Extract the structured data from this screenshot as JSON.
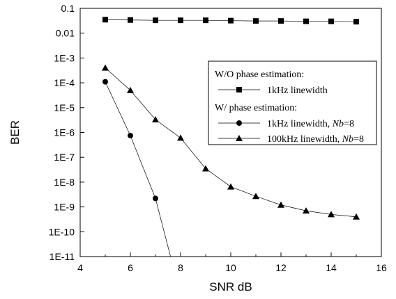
{
  "chart_data": {
    "type": "line",
    "xlabel": "SNR dB",
    "ylabel": "BER",
    "xlim": [
      4,
      16
    ],
    "ylim": [
      1e-11,
      0.1
    ],
    "yscale": "log",
    "grid": false,
    "xticks": [
      4,
      6,
      8,
      10,
      12,
      14,
      16
    ],
    "xtick_labels": [
      "4",
      "6",
      "8",
      "10",
      "12",
      "14",
      "16"
    ],
    "yticks": [
      1e-11,
      1e-10,
      1e-09,
      1e-08,
      1e-07,
      1e-06,
      1e-05,
      0.0001,
      0.001,
      0.01,
      0.1
    ],
    "ytick_labels": [
      "1E-11",
      "1E-10",
      "1E-9",
      "1E-8",
      "1E-7",
      "1E-6",
      "1E-5",
      "1E-4",
      "1E-3",
      "0.01",
      "0.1"
    ],
    "legend": {
      "position": "right",
      "header1": "W/O phase estimation:",
      "header2": "W/ phase estimation:",
      "entries": [
        {
          "series": 0,
          "text": "1kHz linewidth"
        },
        {
          "series": 1,
          "text": "1kHz linewidth, ",
          "ital": "Nb",
          "suffix": "=8"
        },
        {
          "series": 2,
          "text": "100kHz linewidth, ",
          "ital": "Nb",
          "suffix": "=8"
        }
      ]
    },
    "series": [
      {
        "marker": "square",
        "x": [
          5,
          6,
          7,
          8,
          9,
          10,
          11,
          12,
          13,
          14,
          15
        ],
        "y": [
          0.035,
          0.034,
          0.033,
          0.033,
          0.033,
          0.032,
          0.031,
          0.031,
          0.03,
          0.03,
          0.029
        ]
      },
      {
        "marker": "circle",
        "x": [
          5,
          6,
          7,
          7.6
        ],
        "y": [
          0.00011,
          7.5e-07,
          2.2e-09,
          1e-11
        ]
      },
      {
        "marker": "triangle",
        "x": [
          5,
          6,
          7,
          8,
          9,
          10,
          11,
          12,
          13,
          14,
          15
        ],
        "y": [
          0.0004,
          5e-05,
          3.3e-06,
          6e-07,
          3.5e-08,
          6.5e-09,
          2.7e-09,
          1.2e-09,
          7e-10,
          5e-10,
          4e-10
        ]
      }
    ]
  }
}
